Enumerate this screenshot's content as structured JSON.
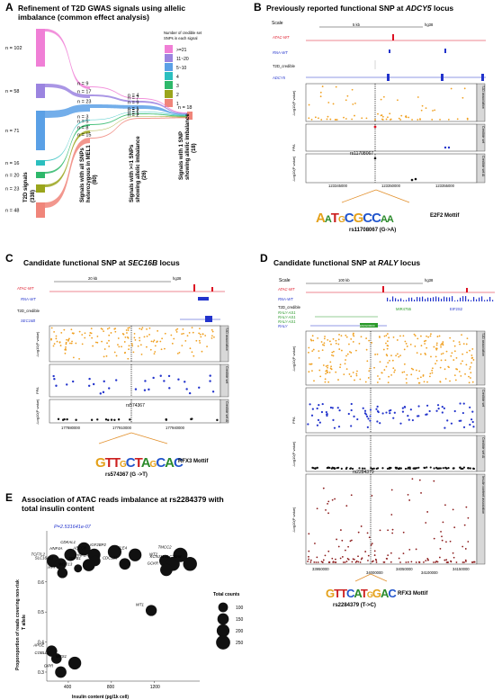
{
  "panelA": {
    "letter": "A",
    "title": "Refinement of T2D GWAS signals using allelic imbalance (common effect analysis)",
    "legend_title": "Number of credible set SNPs in each signal",
    "legend_items": [
      {
        "label": ">=21",
        "color": "#f07fd6"
      },
      {
        "label": "11~20",
        "color": "#9b84e0"
      },
      {
        "label": "5~10",
        "color": "#5aa0e6"
      },
      {
        "label": "4",
        "color": "#2bbfbf"
      },
      {
        "label": "3",
        "color": "#2eb86a"
      },
      {
        "label": "2",
        "color": "#9aa51c"
      },
      {
        "label": "1",
        "color": "#f0857a"
      }
    ],
    "left_counts": [
      "n = 102",
      "n = 58",
      "n = 71",
      "n = 16",
      "n = 20",
      "n = 23",
      "n = 48"
    ],
    "mid_counts": [
      "n = 9",
      "n = 17",
      "n = 23",
      "n = 3",
      "n = 5",
      "n = 8",
      "n = 15"
    ],
    "right_counts": [
      "n = 4",
      "n = 7",
      "n = 9",
      "n = 1",
      "n = 2",
      "n = 1",
      "n = 2"
    ],
    "final_count": "n = 18",
    "axis_labels": [
      "T2D signals (338)",
      "Signals with all SNPs heterozygous in MEL1 (80)",
      "Signals with >=1 SNPs showing allelic imbalance (26)",
      "Signals with 1 SNP showing allelic imbalance (18)"
    ]
  },
  "panelB": {
    "letter": "B",
    "title": "Previously reported functional SNP at ADCY5 locus",
    "scale_label": "Scale",
    "scale_bar": "5 kb",
    "genome": "hg38",
    "tracks": [
      "ATAC-WT",
      "RNA-WT",
      "T2D_credible",
      "ADCY5"
    ],
    "strip_labels": [
      "T2D association",
      "Credible set",
      "Credible set AI"
    ],
    "y_labels": [
      "-Log10(P value)",
      "PPA",
      "-Log10(P value)"
    ],
    "snp": "rs11708067",
    "x_ticks": [
      "123345000",
      "123350000",
      "123355000"
    ],
    "motif": "E2F2 Mottif",
    "snp_change": "rs11708067 (G->A)"
  },
  "panelC": {
    "letter": "C",
    "title": "Candidate functional SNP at SEC16B locus",
    "scale_bar": "20 kb",
    "genome": "hg38",
    "tracks": [
      "ATAC-WT",
      "RNA-WT",
      "T2D_credible",
      "SEC16B"
    ],
    "strip_labels": [
      "T2D association",
      "Credible set",
      "Credible set AI"
    ],
    "y_labels": [
      "-Log10(P value)",
      "PPA",
      "-Log10(P value)"
    ],
    "snp": "rs574367",
    "x_ticks": [
      "177880000",
      "177910000",
      "177940000"
    ],
    "motif": "RFX3 Mottif",
    "snp_change": "rs574367 (G ->T)"
  },
  "panelD": {
    "letter": "D",
    "title": "Candidate functional SNP at RALY locus",
    "scale_label": "Scale",
    "scale_bar": "100 kb",
    "genome": "hg38",
    "tracks": [
      "ATAC-WT",
      "RNA-WT",
      "T2D_credible",
      "RALY-AS1",
      "RALY-AS1",
      "RALY-AS1",
      "RALY"
    ],
    "gene_labels": [
      "MIR4755",
      "EIF2S2",
      "EN0G00000"
    ],
    "strip_labels": [
      "T2D association",
      "Credible set",
      "Credible set AI",
      "Insulin content association"
    ],
    "y_labels": [
      "-Log10(P value)",
      "PPA",
      "-Log10(P value)",
      "-Log10(P value)"
    ],
    "snp": "rs2284379",
    "x_ticks": [
      "33950000",
      "34050000",
      "34150000"
    ],
    "x_ticks_extra": [
      "34000000",
      "34100000"
    ],
    "motif": "RFX3 Mottif",
    "snp_change": "rs2284379 (T->C)"
  },
  "panelE": {
    "letter": "E",
    "title": "Association of ATAC reads imbalance at rs2284379 with total insulin content",
    "pvalue": "P=2.531641e-07",
    "legend_title": "Total counts",
    "size_legend": [
      "100",
      "150",
      "200",
      "250"
    ],
    "chart_data": {
      "type": "scatter",
      "xlabel": "Insulin content (pg/1k cell)",
      "ylabel": "Proporoportion of reads covering non-risk T allele",
      "x_ticks": [
        400,
        800,
        1200
      ],
      "y_ticks": [
        0.3,
        0.4,
        0.5,
        0.6
      ],
      "xlim": [
        200,
        1620
      ],
      "ylim": [
        0.27,
        0.77
      ],
      "points": [
        {
          "label": "TCF7L2",
          "x": 260,
          "y": 0.67,
          "size": 200
        },
        {
          "label": "SLC16A11",
          "x": 330,
          "y": 0.66,
          "size": 150
        },
        {
          "label": "HTT",
          "x": 345,
          "y": 0.63,
          "size": 120
        },
        {
          "label": "HNF4A",
          "x": 420,
          "y": 0.69,
          "size": 180
        },
        {
          "label": "CDKAL1",
          "x": 545,
          "y": 0.71,
          "size": 210
        },
        {
          "label": "ABCC8",
          "x": 640,
          "y": 0.69,
          "size": 190
        },
        {
          "label": "HNF1A",
          "x": 650,
          "y": 0.67,
          "size": 120
        },
        {
          "label": "TGFB1",
          "x": 590,
          "y": 0.656,
          "size": 180
        },
        {
          "label": "WDR13",
          "x": 490,
          "y": 0.645,
          "size": 60
        },
        {
          "label": "IGF2BP2",
          "x": 830,
          "y": 0.7,
          "size": 230
        },
        {
          "label": "CDC123",
          "x": 925,
          "y": 0.66,
          "size": 150
        },
        {
          "label": "TLE4",
          "x": 1020,
          "y": 0.69,
          "size": 200
        },
        {
          "label": "WT2",
          "x": 1300,
          "y": 0.67,
          "size": 170
        },
        {
          "label": "KCNJ11",
          "x": 1370,
          "y": 0.66,
          "size": 240
        },
        {
          "label": "GCKR",
          "x": 1310,
          "y": 0.64,
          "size": 180
        },
        {
          "label": "TMCC2",
          "x": 1440,
          "y": 0.69,
          "size": 260
        },
        {
          "label": "SLC30A8",
          "x": 1530,
          "y": 0.66,
          "size": 240
        },
        {
          "label": "WT1",
          "x": 1170,
          "y": 0.505,
          "size": 140
        },
        {
          "label": "APOE",
          "x": 245,
          "y": 0.37,
          "size": 140
        },
        {
          "label": "COBLL1",
          "x": 290,
          "y": 0.345,
          "size": 120
        },
        {
          "label": "WFS1",
          "x": 460,
          "y": 0.33,
          "size": 200
        },
        {
          "label": "GIPR",
          "x": 330,
          "y": 0.3,
          "size": 150
        }
      ]
    }
  }
}
